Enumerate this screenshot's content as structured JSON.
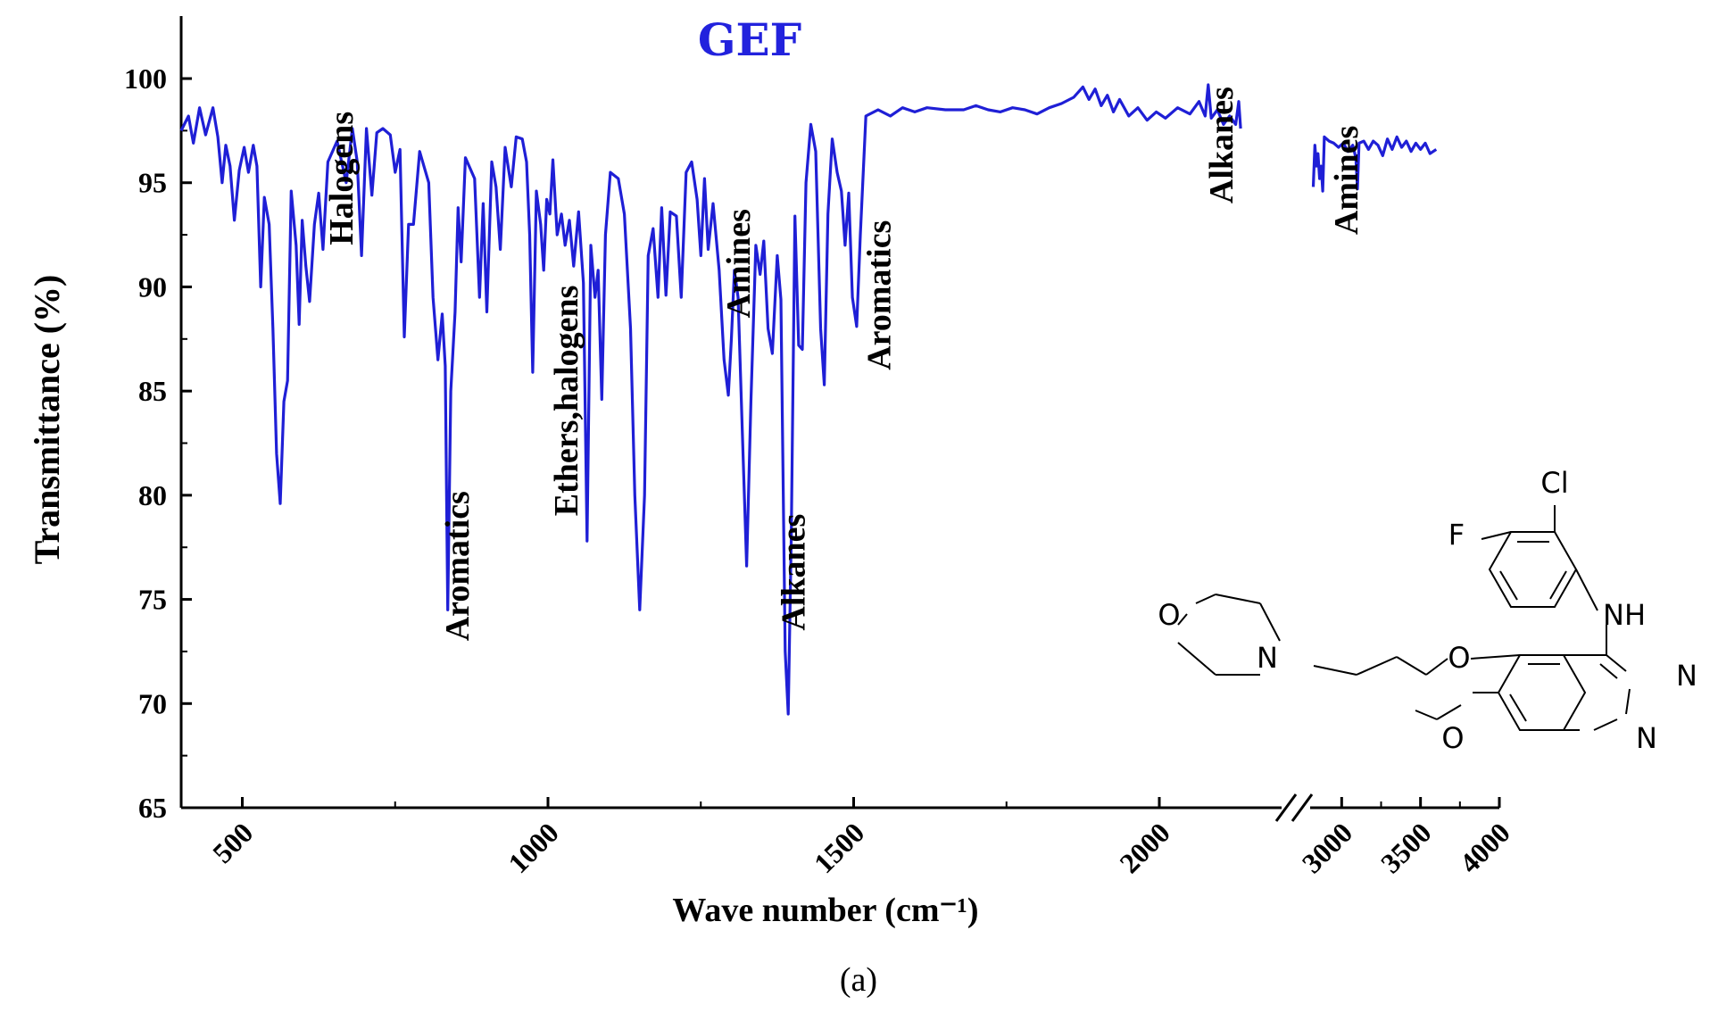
{
  "caption": "(a)",
  "chart_data": {
    "type": "line",
    "title": "GEF",
    "xlabel": "Wave number (cm⁻¹)",
    "ylabel": "Transmittance (%)",
    "xlim_segment1": [
      400,
      2200
    ],
    "xlim_segment2": [
      2800,
      4000
    ],
    "xaxis_break": true,
    "ylim": [
      65,
      103
    ],
    "xticks": [
      500,
      1000,
      1500,
      2000,
      3000,
      3500,
      4000
    ],
    "yticks": [
      65,
      70,
      75,
      80,
      85,
      90,
      95,
      100
    ],
    "grid": false,
    "line_color": "#1f1fd6",
    "series": [
      {
        "segment": 1,
        "points": [
          [
            400,
            97.5
          ],
          [
            412,
            98.2
          ],
          [
            420,
            96.9
          ],
          [
            430,
            98.6
          ],
          [
            440,
            97.3
          ],
          [
            452,
            98.6
          ],
          [
            460,
            97.2
          ],
          [
            467,
            95.0
          ],
          [
            473,
            96.8
          ],
          [
            480,
            95.8
          ],
          [
            487,
            93.2
          ],
          [
            495,
            95.6
          ],
          [
            503,
            96.7
          ],
          [
            510,
            95.5
          ],
          [
            518,
            96.8
          ],
          [
            524,
            95.8
          ],
          [
            530,
            90.0
          ],
          [
            536,
            94.3
          ],
          [
            544,
            93.0
          ],
          [
            550,
            88.0
          ],
          [
            556,
            82.0
          ],
          [
            562,
            79.6
          ],
          [
            568,
            84.5
          ],
          [
            574,
            85.5
          ],
          [
            580,
            94.6
          ],
          [
            588,
            92.0
          ],
          [
            593,
            88.2
          ],
          [
            598,
            93.2
          ],
          [
            604,
            91.0
          ],
          [
            610,
            89.3
          ],
          [
            618,
            93.0
          ],
          [
            625,
            94.5
          ],
          [
            632,
            91.8
          ],
          [
            640,
            96.0
          ],
          [
            655,
            97.0
          ],
          [
            670,
            95.0
          ],
          [
            680,
            97.6
          ],
          [
            688,
            96.0
          ],
          [
            695,
            91.5
          ],
          [
            703,
            97.6
          ],
          [
            712,
            94.4
          ],
          [
            720,
            97.4
          ],
          [
            730,
            97.6
          ],
          [
            742,
            97.3
          ],
          [
            750,
            95.5
          ],
          [
            758,
            96.6
          ],
          [
            765,
            87.6
          ],
          [
            772,
            93.0
          ],
          [
            780,
            93.0
          ],
          [
            790,
            96.5
          ],
          [
            805,
            95.0
          ],
          [
            812,
            89.5
          ],
          [
            820,
            86.5
          ],
          [
            827,
            88.7
          ],
          [
            832,
            86.2
          ],
          [
            836,
            74.5
          ],
          [
            841,
            85.0
          ],
          [
            848,
            88.8
          ],
          [
            853,
            93.8
          ],
          [
            858,
            91.2
          ],
          [
            865,
            96.2
          ],
          [
            880,
            95.2
          ],
          [
            888,
            89.5
          ],
          [
            894,
            94.0
          ],
          [
            900,
            88.8
          ],
          [
            908,
            96.0
          ],
          [
            915,
            94.8
          ],
          [
            922,
            91.8
          ],
          [
            930,
            96.7
          ],
          [
            940,
            94.8
          ],
          [
            948,
            97.2
          ],
          [
            958,
            97.1
          ],
          [
            965,
            96.0
          ],
          [
            970,
            92.5
          ],
          [
            975,
            85.9
          ],
          [
            981,
            94.6
          ],
          [
            988,
            93.0
          ],
          [
            993,
            90.8
          ],
          [
            998,
            94.2
          ],
          [
            1003,
            93.5
          ],
          [
            1008,
            96.1
          ],
          [
            1015,
            92.5
          ],
          [
            1022,
            93.5
          ],
          [
            1028,
            92.0
          ],
          [
            1035,
            93.2
          ],
          [
            1042,
            91.0
          ],
          [
            1050,
            93.6
          ],
          [
            1058,
            90.2
          ],
          [
            1064,
            77.8
          ],
          [
            1070,
            92.0
          ],
          [
            1077,
            89.5
          ],
          [
            1082,
            90.8
          ],
          [
            1088,
            84.6
          ],
          [
            1094,
            92.5
          ],
          [
            1102,
            95.5
          ],
          [
            1115,
            95.2
          ],
          [
            1125,
            93.5
          ],
          [
            1135,
            88.0
          ],
          [
            1142,
            80.0
          ],
          [
            1150,
            74.5
          ],
          [
            1158,
            80.0
          ],
          [
            1164,
            91.5
          ],
          [
            1172,
            92.8
          ],
          [
            1180,
            89.5
          ],
          [
            1186,
            93.8
          ],
          [
            1193,
            89.6
          ],
          [
            1200,
            93.6
          ],
          [
            1210,
            93.4
          ],
          [
            1218,
            89.5
          ],
          [
            1226,
            95.5
          ],
          [
            1235,
            96.0
          ],
          [
            1244,
            94.2
          ],
          [
            1250,
            91.5
          ],
          [
            1256,
            95.2
          ],
          [
            1262,
            91.8
          ],
          [
            1270,
            94.0
          ],
          [
            1280,
            90.8
          ],
          [
            1288,
            86.5
          ],
          [
            1295,
            84.8
          ],
          [
            1300,
            87.5
          ],
          [
            1305,
            90.8
          ],
          [
            1311,
            89.5
          ],
          [
            1318,
            83.0
          ],
          [
            1325,
            76.6
          ],
          [
            1332,
            84.5
          ],
          [
            1340,
            92.0
          ],
          [
            1347,
            90.6
          ],
          [
            1353,
            92.2
          ],
          [
            1360,
            88.0
          ],
          [
            1367,
            86.8
          ],
          [
            1375,
            91.5
          ],
          [
            1381,
            89.4
          ],
          [
            1388,
            72.5
          ],
          [
            1393,
            69.5
          ],
          [
            1398,
            78.0
          ],
          [
            1404,
            93.4
          ],
          [
            1410,
            87.2
          ],
          [
            1416,
            87.0
          ],
          [
            1422,
            95.0
          ],
          [
            1430,
            97.8
          ],
          [
            1438,
            96.5
          ],
          [
            1446,
            88.0
          ],
          [
            1452,
            85.3
          ],
          [
            1458,
            93.5
          ],
          [
            1465,
            97.1
          ],
          [
            1473,
            95.5
          ],
          [
            1480,
            94.6
          ],
          [
            1486,
            92.0
          ],
          [
            1492,
            94.5
          ],
          [
            1498,
            89.5
          ],
          [
            1505,
            88.1
          ],
          [
            1511,
            92.5
          ],
          [
            1520,
            98.2
          ],
          [
            1540,
            98.5
          ],
          [
            1560,
            98.2
          ],
          [
            1580,
            98.6
          ],
          [
            1600,
            98.4
          ],
          [
            1620,
            98.6
          ],
          [
            1650,
            98.5
          ],
          [
            1680,
            98.5
          ],
          [
            1700,
            98.7
          ],
          [
            1720,
            98.5
          ],
          [
            1740,
            98.4
          ],
          [
            1760,
            98.6
          ],
          [
            1780,
            98.5
          ],
          [
            1800,
            98.3
          ],
          [
            1820,
            98.6
          ],
          [
            1840,
            98.8
          ],
          [
            1860,
            99.1
          ],
          [
            1875,
            99.6
          ],
          [
            1885,
            99.0
          ],
          [
            1895,
            99.5
          ],
          [
            1905,
            98.7
          ],
          [
            1915,
            99.2
          ],
          [
            1925,
            98.4
          ],
          [
            1935,
            99.0
          ],
          [
            1950,
            98.2
          ],
          [
            1965,
            98.6
          ],
          [
            1980,
            98.0
          ],
          [
            1995,
            98.4
          ],
          [
            2010,
            98.1
          ],
          [
            2030,
            98.6
          ],
          [
            2050,
            98.3
          ],
          [
            2065,
            98.9
          ],
          [
            2075,
            98.2
          ],
          [
            2080,
            99.7
          ],
          [
            2085,
            98.1
          ],
          [
            2095,
            98.5
          ],
          [
            2105,
            97.8
          ],
          [
            2115,
            98.2
          ],
          [
            2125,
            97.8
          ],
          [
            2130,
            98.9
          ],
          [
            2133,
            97.6
          ]
        ]
      },
      {
        "segment": 2,
        "points": [
          [
            2820,
            94.8
          ],
          [
            2830,
            96.8
          ],
          [
            2840,
            95.8
          ],
          [
            2850,
            96.4
          ],
          [
            2860,
            95.2
          ],
          [
            2870,
            95.8
          ],
          [
            2880,
            94.6
          ],
          [
            2890,
            97.2
          ],
          [
            2920,
            97.0
          ],
          [
            2950,
            96.9
          ],
          [
            2980,
            96.7
          ],
          [
            3010,
            96.9
          ],
          [
            3040,
            96.5
          ],
          [
            3070,
            96.8
          ],
          [
            3090,
            96.2
          ],
          [
            3100,
            94.7
          ],
          [
            3110,
            96.9
          ],
          [
            3140,
            97.0
          ],
          [
            3170,
            96.6
          ],
          [
            3200,
            97.0
          ],
          [
            3230,
            96.8
          ],
          [
            3260,
            96.3
          ],
          [
            3290,
            97.1
          ],
          [
            3320,
            96.6
          ],
          [
            3350,
            97.2
          ],
          [
            3380,
            96.7
          ],
          [
            3410,
            97.0
          ],
          [
            3440,
            96.5
          ],
          [
            3470,
            96.9
          ],
          [
            3500,
            96.6
          ],
          [
            3530,
            96.9
          ],
          [
            3560,
            96.4
          ],
          [
            3600,
            96.6
          ]
        ]
      }
    ],
    "annotations": [
      {
        "text": "Halogens",
        "x": 680,
        "y": 92
      },
      {
        "text": "Aromatics",
        "x": 870,
        "y": 73
      },
      {
        "text": "Ethers,halogens",
        "x": 1048,
        "y": 79
      },
      {
        "text": "Amines",
        "x": 1330,
        "y": 88.5
      },
      {
        "text": "Alkanes",
        "x": 1420,
        "y": 73.5
      },
      {
        "text": "Aromatics",
        "x": 1560,
        "y": 86
      },
      {
        "text": "Alkanes",
        "x": 2120,
        "y": 94
      },
      {
        "text": "Amines",
        "x": 3100,
        "y": 92.5
      }
    ]
  },
  "molecule_atoms": [
    "Cl",
    "F",
    "NH",
    "O",
    "N",
    "O",
    "N",
    "N",
    "O"
  ]
}
